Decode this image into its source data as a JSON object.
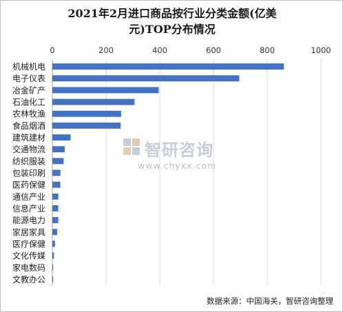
{
  "chart_data": {
    "type": "bar",
    "orientation": "horizontal",
    "title": "2021年2月进口商品按行业分类金额(亿美元)TOP分布情况",
    "categories": [
      "机械机电",
      "电子仪表",
      "冶金矿产",
      "石油化工",
      "农林牧渔",
      "食品烟酒",
      "建筑建材",
      "交通物流",
      "纺织服装",
      "包装印刷",
      "医药保健",
      "通信产业",
      "信息产业",
      "能源电力",
      "家居家具",
      "医疗保健",
      "文化传媒",
      "家电数码",
      "文教办公"
    ],
    "values": [
      862,
      696,
      396,
      306,
      256,
      254,
      68,
      46,
      42,
      30,
      30,
      22,
      22,
      22,
      18,
      10,
      6,
      3,
      3
    ],
    "xlim": [
      0,
      1000
    ],
    "xticks": [
      0,
      200,
      400,
      600,
      800,
      1000
    ],
    "xtick_labels": [
      "0",
      "200",
      "400",
      "600",
      "800",
      "1000"
    ],
    "xlabel": "",
    "ylabel": "",
    "bar_color": "#4472c4",
    "grid": true,
    "axis_position": "top"
  },
  "title_line1": "2021年2月进口商品按行业分类金额(亿美",
  "title_line2": "元)TOP分布情况",
  "source": "数据来源：中国海关，智研咨询整理",
  "watermark": {
    "name": "智研咨询",
    "url": "www.chyxx.com",
    "icon": "chyxx-logo-icon"
  }
}
